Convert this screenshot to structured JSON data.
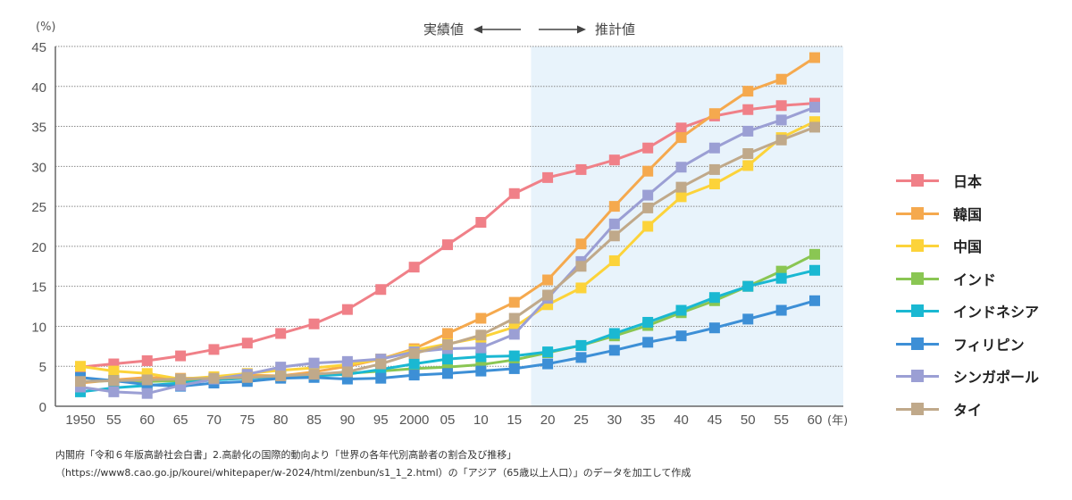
{
  "chart_data": {
    "type": "line",
    "title": "",
    "ylabel": "(%)",
    "xlabel": "(年)",
    "ylim": [
      0,
      45
    ],
    "yticks": [
      0,
      5,
      10,
      15,
      20,
      25,
      30,
      35,
      40,
      45
    ],
    "grid": true,
    "legend_position": "right",
    "x": [
      1950,
      1955,
      1960,
      1965,
      1970,
      1975,
      1980,
      1985,
      1990,
      1995,
      2000,
      2005,
      2010,
      2015,
      2020,
      2025,
      2030,
      2035,
      2040,
      2045,
      2050,
      2055,
      2060
    ],
    "xtick_labels": [
      "1950",
      "55",
      "60",
      "65",
      "70",
      "75",
      "80",
      "85",
      "90",
      "95",
      "2000",
      "05",
      "10",
      "15",
      "20",
      "25",
      "30",
      "35",
      "40",
      "45",
      "50",
      "55",
      "60"
    ],
    "annotations": {
      "actual_label": "実績値",
      "projected_label": "推計値",
      "projected_from": 2017.5
    },
    "series": [
      {
        "name": "日本",
        "color": "#f08088",
        "values": [
          4.9,
          5.3,
          5.7,
          6.3,
          7.1,
          7.9,
          9.1,
          10.3,
          12.1,
          14.6,
          17.4,
          20.2,
          23.0,
          26.6,
          28.6,
          29.6,
          30.8,
          32.3,
          34.8,
          36.3,
          37.1,
          37.6,
          37.9
        ]
      },
      {
        "name": "韓国",
        "color": "#f5a94e",
        "values": [
          2.9,
          3.3,
          3.6,
          3.5,
          3.5,
          3.9,
          3.8,
          4.3,
          5.0,
          5.9,
          7.2,
          9.1,
          11.0,
          13.0,
          15.8,
          20.3,
          25.0,
          29.4,
          33.6,
          36.6,
          39.4,
          40.9,
          43.6
        ]
      },
      {
        "name": "中国",
        "color": "#fcd33a",
        "values": [
          5.0,
          4.4,
          4.1,
          3.4,
          3.7,
          4.1,
          4.5,
          4.8,
          5.2,
          5.9,
          7.0,
          7.8,
          8.6,
          9.9,
          12.7,
          14.8,
          18.2,
          22.5,
          26.2,
          27.8,
          30.1,
          33.6,
          35.6
        ]
      },
      {
        "name": "インド",
        "color": "#8ac653",
        "values": [
          3.1,
          3.2,
          3.1,
          3.2,
          3.4,
          3.6,
          3.8,
          3.9,
          4.1,
          4.4,
          4.7,
          4.9,
          5.2,
          5.8,
          6.7,
          7.6,
          8.8,
          10.1,
          11.7,
          13.2,
          15.0,
          16.9,
          19.0
        ]
      },
      {
        "name": "インドネシア",
        "color": "#1ab8d2",
        "values": [
          1.8,
          2.3,
          2.6,
          2.9,
          3.3,
          3.5,
          3.7,
          3.8,
          4.0,
          4.6,
          5.3,
          5.9,
          6.2,
          6.3,
          6.8,
          7.6,
          9.1,
          10.5,
          12.0,
          13.6,
          15.0,
          16.0,
          17.0
        ]
      },
      {
        "name": "フィリピン",
        "color": "#3d8fd6",
        "values": [
          3.6,
          3.2,
          2.7,
          2.5,
          2.9,
          3.1,
          3.5,
          3.6,
          3.4,
          3.5,
          3.9,
          4.1,
          4.4,
          4.7,
          5.3,
          6.1,
          7.0,
          8.0,
          8.8,
          9.8,
          10.9,
          12.0,
          13.2
        ]
      },
      {
        "name": "シンガポール",
        "color": "#9b9fd4",
        "values": [
          2.4,
          1.8,
          1.6,
          2.6,
          3.4,
          4.0,
          4.9,
          5.4,
          5.6,
          5.9,
          6.8,
          7.2,
          7.3,
          9.0,
          13.5,
          18.1,
          22.8,
          26.4,
          29.9,
          32.3,
          34.4,
          35.8,
          37.4
        ]
      },
      {
        "name": "タイ",
        "color": "#c0a98a",
        "values": [
          3.1,
          3.2,
          3.3,
          3.4,
          3.5,
          3.6,
          3.8,
          4.0,
          4.3,
          5.3,
          6.6,
          7.7,
          8.9,
          11.0,
          13.9,
          17.5,
          21.3,
          24.8,
          27.4,
          29.6,
          31.6,
          33.3,
          34.9
        ]
      }
    ]
  },
  "source": {
    "line1": "内閣府「令和６年版高齢社会白書」2.高齢化の国際的動向より「世界の各年代別高齢者の割合及び推移」",
    "line2": "（https://www8.cao.go.jp/kourei/whitepaper/w-2024/html/zenbun/s1_1_2.html）の「アジア（65歳以上人口）」のデータを加工して作成"
  }
}
